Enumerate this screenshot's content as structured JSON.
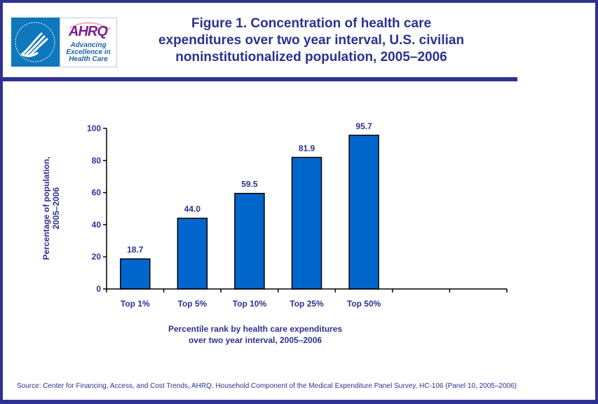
{
  "logo": {
    "agency": "AHRQ",
    "tagline_lines": [
      "Advancing",
      "Excellence in",
      "Health Care"
    ],
    "seal_alt": "Department of Health & Human Services USA seal"
  },
  "title_lines": [
    "Figure 1. Concentration of health care",
    "expenditures over two year interval, U.S. civilian",
    "noninstitutionalized population, 2005–2006"
  ],
  "source": "Source: Center for Financing, Access, and Cost Trends, AHRQ, Household Component of the Medical Expenditure Panel Survey, HC-106 (Panel 10, 2005–2006)",
  "colors": {
    "frame": "#2e3192",
    "text": "#2e3192",
    "bar_fill": "#0066cc",
    "bar_stroke": "#000000"
  },
  "chart_data": {
    "type": "bar",
    "title": "Figure 1. Concentration of health care expenditures over two year interval, U.S. civilian noninstitutionalized population, 2005–2006",
    "categories": [
      "Top 1%",
      "Top 5%",
      "Top 10%",
      "Top 25%",
      "Top 50%",
      "",
      ""
    ],
    "values": [
      18.7,
      44.0,
      59.5,
      81.9,
      95.7,
      null,
      null
    ],
    "data_labels": [
      "18.7",
      "44.0",
      "59.5",
      "81.9",
      "95.7"
    ],
    "xlabel_lines": [
      "Percentile rank by health care expenditures",
      "over two year interval, 2005–2006"
    ],
    "ylabel_lines": [
      "Percentage of population,",
      "2005–2006"
    ],
    "ylim": [
      0,
      100
    ],
    "yticks": [
      0,
      20,
      40,
      60,
      80,
      100
    ],
    "grid": false,
    "legend": "none"
  }
}
